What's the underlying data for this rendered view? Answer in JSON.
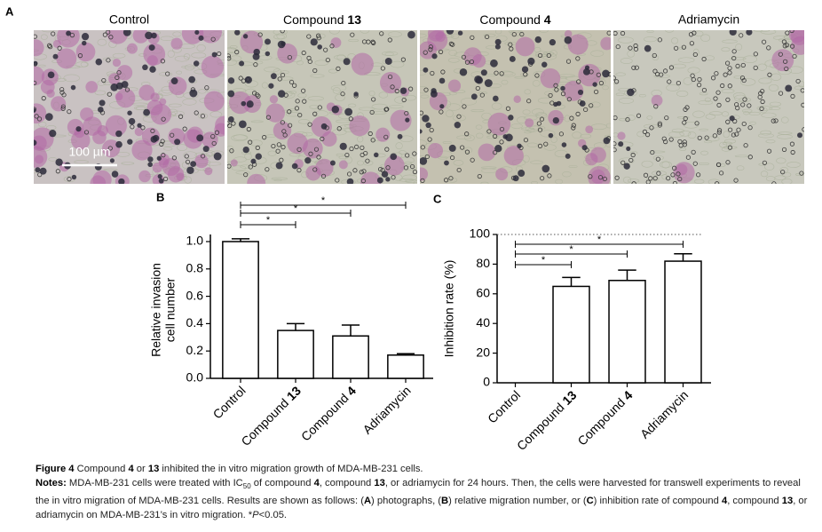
{
  "panel_labels": [
    "A",
    "B",
    "C"
  ],
  "photos": {
    "titles": [
      "Control",
      "Compound 13",
      "Compound 4",
      "Adriamycin"
    ],
    "scale_bar": "100 µm"
  },
  "chart_data": [
    {
      "type": "bar",
      "y_label": [
        "Relative invasion",
        "cell number"
      ],
      "categories": [
        "Control",
        "Compound 13",
        "Compound 4",
        "Adriamycin"
      ],
      "values": [
        1.0,
        0.35,
        0.31,
        0.17
      ],
      "errors": [
        0.02,
        0.05,
        0.08,
        0.01
      ],
      "significance": [
        null,
        "*",
        "*",
        "*"
      ],
      "color": "#ffffff",
      "ylim": [
        0,
        1.0
      ],
      "yticks": [
        {
          "value": 0,
          "label": "0.0"
        },
        0.2,
        0.4,
        0.6,
        0.8,
        {
          "value": 1.0,
          "label": "1.0"
        }
      ]
    },
    {
      "type": "bar",
      "y_label": [
        "Inhibition rate (%)"
      ],
      "categories": [
        "Control",
        "Compound 13",
        "Compound 4",
        "Adriamycin"
      ],
      "values": [
        0,
        65,
        69,
        82
      ],
      "errors": [
        0,
        6,
        7,
        5
      ],
      "significance": [
        null,
        "*",
        "*",
        "*"
      ],
      "color": "#ffffff",
      "ylim": [
        0,
        100
      ],
      "yticks": [
        0,
        20,
        40,
        60,
        80,
        100
      ],
      "dotted_top": true
    }
  ],
  "caption": {
    "title": [
      "Figure 4",
      " Compound ",
      "4",
      " or ",
      "13",
      " inhibited the in vitro migration growth of MDA-MB-231 cells."
    ],
    "notes": [
      "Notes:",
      " MDA-MB-231 cells were treated with IC",
      "50",
      " of compound ",
      "4",
      ", compound ",
      "13",
      ", or adriamycin for 24 hours. Then, the cells were harvested for transwell experiments to reveal the in vitro migration of MDA-MB-231 cells. Results are shown as follows: (",
      "A",
      ") photographs, (",
      "B",
      ") relative migration number, or (",
      "C",
      ") inhibition rate of compound ",
      "4",
      ", compound ",
      "13",
      ", or adriamycin on MDA-MB-231’s in vitro migration. *",
      "P",
      "<0.05."
    ]
  }
}
